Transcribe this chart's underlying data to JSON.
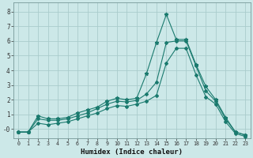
{
  "title": "",
  "xlabel": "Humidex (Indice chaleur)",
  "bg_color": "#cce8e8",
  "grid_color": "#aacccc",
  "line_color": "#1a7a6e",
  "xlim": [
    -0.5,
    23.5
  ],
  "ylim": [
    -0.6,
    8.6
  ],
  "yticks": [
    0,
    1,
    2,
    3,
    4,
    5,
    6,
    7,
    8
  ],
  "ytick_labels": [
    "-0",
    "1",
    "2",
    "3",
    "4",
    "5",
    "6",
    "7",
    "8"
  ],
  "xticks": [
    0,
    1,
    2,
    3,
    4,
    5,
    6,
    7,
    8,
    9,
    10,
    11,
    12,
    13,
    14,
    15,
    16,
    17,
    18,
    19,
    20,
    21,
    22,
    23
  ],
  "line1_x": [
    0,
    1,
    2,
    3,
    4,
    5,
    6,
    7,
    8,
    9,
    10,
    11,
    12,
    13,
    14,
    15,
    16,
    17,
    18,
    19,
    20,
    21,
    22,
    23
  ],
  "line1_y": [
    -0.2,
    -0.2,
    0.9,
    0.7,
    0.7,
    0.8,
    1.1,
    1.3,
    1.5,
    1.9,
    2.1,
    2.0,
    2.1,
    3.8,
    5.9,
    7.8,
    6.1,
    6.1,
    4.4,
    2.9,
    2.0,
    0.8,
    -0.2,
    -0.4
  ],
  "line2_x": [
    0,
    1,
    2,
    3,
    4,
    5,
    6,
    7,
    8,
    9,
    10,
    11,
    12,
    13,
    14,
    15,
    16,
    17,
    18,
    19,
    20,
    21,
    22,
    23
  ],
  "line2_y": [
    -0.2,
    -0.2,
    0.7,
    0.6,
    0.6,
    0.7,
    0.9,
    1.1,
    1.4,
    1.7,
    1.9,
    1.85,
    1.95,
    2.4,
    3.2,
    5.9,
    6.0,
    6.0,
    4.3,
    2.6,
    1.9,
    0.7,
    -0.2,
    -0.4
  ],
  "line3_x": [
    0,
    1,
    2,
    3,
    4,
    5,
    6,
    7,
    8,
    9,
    10,
    11,
    12,
    13,
    14,
    15,
    16,
    17,
    18,
    19,
    20,
    21,
    22,
    23
  ],
  "line3_y": [
    -0.2,
    -0.2,
    0.4,
    0.3,
    0.4,
    0.5,
    0.7,
    0.9,
    1.1,
    1.4,
    1.6,
    1.55,
    1.7,
    1.9,
    2.3,
    4.5,
    5.5,
    5.5,
    3.7,
    2.2,
    1.7,
    0.5,
    -0.3,
    -0.5
  ]
}
